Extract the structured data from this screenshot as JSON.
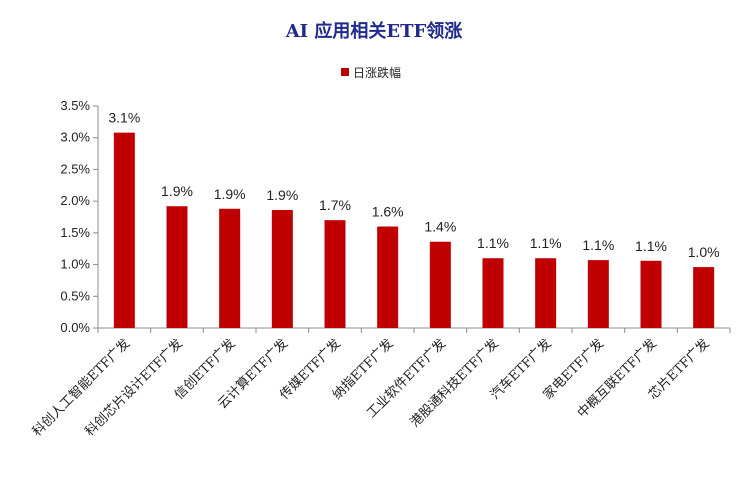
{
  "chart_data": {
    "type": "bar",
    "title": "AI 应用相关ETF领涨",
    "legend": {
      "label": "日涨跌幅",
      "position": "top-center"
    },
    "categories": [
      "科创人工智能ETF广发",
      "科创芯片设计ETF广发",
      "信创ETF广发",
      "云计算ETF广发",
      "传媒ETF广发",
      "纳指ETF广发",
      "工业软件ETF广发",
      "港股通科技ETF广发",
      "汽车ETF广发",
      "家电ETF广发",
      "中概互联ETF广发",
      "芯片ETF广发"
    ],
    "series": [
      {
        "name": "日涨跌幅",
        "values": [
          3.08,
          1.92,
          1.88,
          1.86,
          1.7,
          1.6,
          1.36,
          1.1,
          1.1,
          1.07,
          1.06,
          0.96
        ],
        "data_labels": [
          "3.1%",
          "1.9%",
          "1.9%",
          "1.9%",
          "1.7%",
          "1.6%",
          "1.4%",
          "1.1%",
          "1.1%",
          "1.1%",
          "1.1%",
          "1.0%"
        ]
      }
    ],
    "y_ticks": [
      "0.0%",
      "0.5%",
      "1.0%",
      "1.5%",
      "2.0%",
      "2.5%",
      "3.0%",
      "3.5%"
    ],
    "ylim": [
      0,
      3.5
    ],
    "grid": false,
    "colors": {
      "bar": "#c00000",
      "title": "#1f2a8c",
      "axis": "#8c8c8c"
    }
  }
}
